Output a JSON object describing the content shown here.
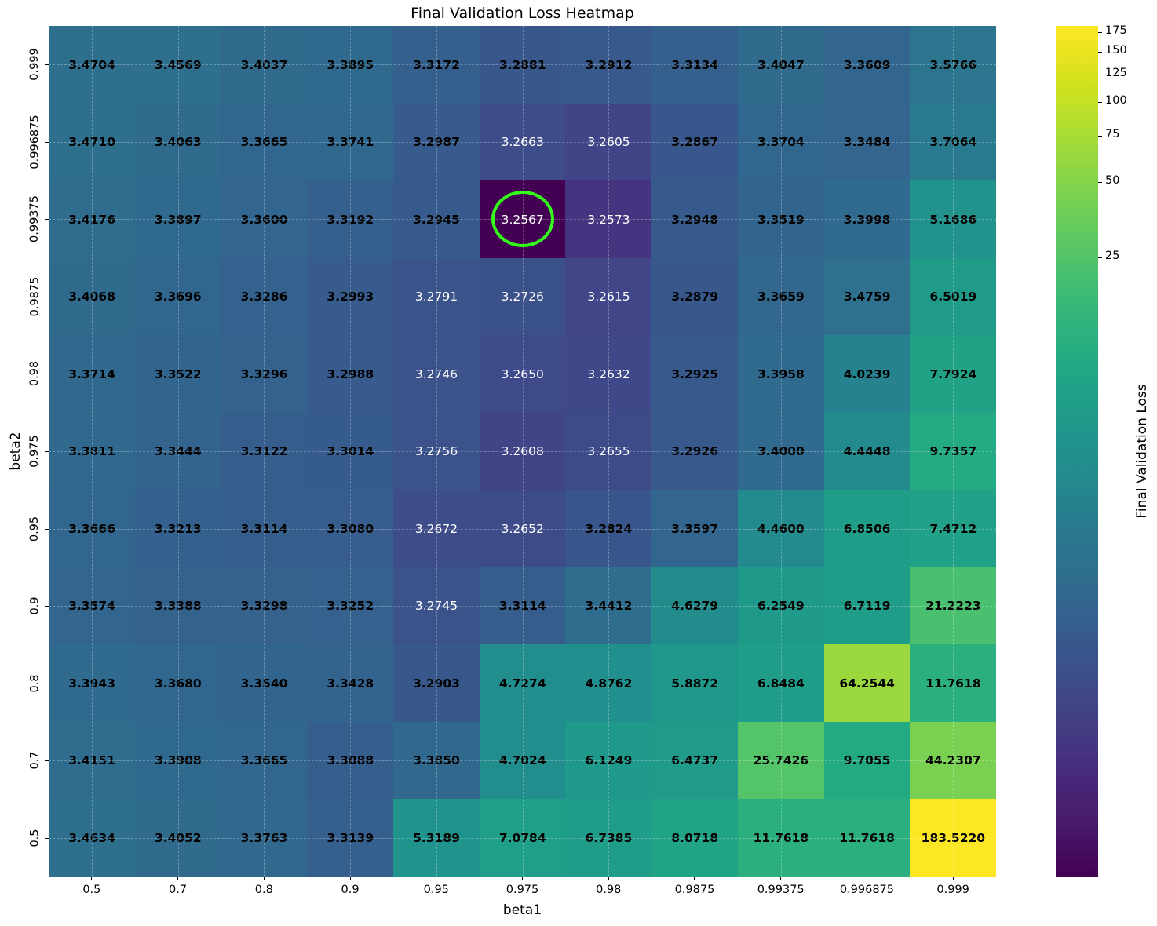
{
  "chart_data": {
    "type": "heatmap",
    "title": "Final Validation Loss Heatmap",
    "xlabel": "beta1",
    "ylabel": "beta2",
    "x": [
      "0.5",
      "0.7",
      "0.8",
      "0.9",
      "0.95",
      "0.975",
      "0.98",
      "0.9875",
      "0.99375",
      "0.996875",
      "0.999"
    ],
    "y": [
      "0.999",
      "0.996875",
      "0.99375",
      "0.9875",
      "0.98",
      "0.975",
      "0.95",
      "0.9",
      "0.8",
      "0.7",
      "0.5"
    ],
    "values": [
      [
        3.4704,
        3.4569,
        3.4037,
        3.3895,
        3.3172,
        3.2881,
        3.2912,
        3.3134,
        3.4047,
        3.3609,
        3.5766
      ],
      [
        3.471,
        3.4063,
        3.3665,
        3.3741,
        3.2987,
        3.2663,
        3.2605,
        3.2867,
        3.3704,
        3.3484,
        3.7064
      ],
      [
        3.4176,
        3.3897,
        3.36,
        3.3192,
        3.2945,
        3.2567,
        3.2573,
        3.2948,
        3.3519,
        3.3998,
        5.1686
      ],
      [
        3.4068,
        3.3696,
        3.3286,
        3.2993,
        3.2791,
        3.2726,
        3.2615,
        3.2879,
        3.3659,
        3.4759,
        6.5019
      ],
      [
        3.3714,
        3.3522,
        3.3296,
        3.2988,
        3.2746,
        3.265,
        3.2632,
        3.2925,
        3.3958,
        4.0239,
        7.7924
      ],
      [
        3.3811,
        3.3444,
        3.3122,
        3.3014,
        3.2756,
        3.2608,
        3.2655,
        3.2926,
        3.4,
        4.4448,
        9.7357
      ],
      [
        3.3666,
        3.3213,
        3.3114,
        3.308,
        3.2672,
        3.2652,
        3.2824,
        3.3597,
        4.46,
        6.8506,
        7.4712
      ],
      [
        3.3574,
        3.3388,
        3.3298,
        3.3252,
        3.2745,
        3.3114,
        3.4412,
        4.6279,
        6.2549,
        6.7119,
        21.2223
      ],
      [
        3.3943,
        3.368,
        3.354,
        3.3428,
        3.2903,
        4.7274,
        4.8762,
        5.8872,
        6.8484,
        64.2544,
        11.7618
      ],
      [
        3.4151,
        3.3908,
        3.3665,
        3.3088,
        3.385,
        4.7024,
        6.1249,
        6.4737,
        25.7426,
        9.7055,
        44.2307
      ],
      [
        3.4634,
        3.4052,
        3.3763,
        3.3139,
        5.3189,
        7.0784,
        6.7385,
        8.0718,
        11.7618,
        11.7618,
        183.522
      ]
    ],
    "labels": [
      [
        "3.4704",
        "3.4569",
        "3.4037",
        "3.3895",
        "3.3172",
        "3.2881",
        "3.2912",
        "3.3134",
        "3.4047",
        "3.3609",
        "3.5766"
      ],
      [
        "3.4710",
        "3.4063",
        "3.3665",
        "3.3741",
        "3.2987",
        "3.2663",
        "3.2605",
        "3.2867",
        "3.3704",
        "3.3484",
        "3.7064"
      ],
      [
        "3.4176",
        "3.3897",
        "3.3600",
        "3.3192",
        "3.2945",
        "3.2567",
        "3.2573",
        "3.2948",
        "3.3519",
        "3.3998",
        "5.1686"
      ],
      [
        "3.4068",
        "3.3696",
        "3.3286",
        "3.2993",
        "3.2791",
        "3.2726",
        "3.2615",
        "3.2879",
        "3.3659",
        "3.4759",
        "6.5019"
      ],
      [
        "3.3714",
        "3.3522",
        "3.3296",
        "3.2988",
        "3.2746",
        "3.2650",
        "3.2632",
        "3.2925",
        "3.3958",
        "4.0239",
        "7.7924"
      ],
      [
        "3.3811",
        "3.3444",
        "3.3122",
        "3.3014",
        "3.2756",
        "3.2608",
        "3.2655",
        "3.2926",
        "3.4000",
        "4.4448",
        "9.7357"
      ],
      [
        "3.3666",
        "3.3213",
        "3.3114",
        "3.3080",
        "3.2672",
        "3.2652",
        "3.2824",
        "3.3597",
        "4.4600",
        "6.8506",
        "7.4712"
      ],
      [
        "3.3574",
        "3.3388",
        "3.3298",
        "3.3252",
        "3.2745",
        "3.3114",
        "3.4412",
        "4.6279",
        "6.2549",
        "6.7119",
        "21.2223"
      ],
      [
        "3.3943",
        "3.3680",
        "3.3540",
        "3.3428",
        "3.2903",
        "4.7274",
        "4.8762",
        "5.8872",
        "6.8484",
        "64.2544",
        "11.7618"
      ],
      [
        "3.4151",
        "3.3908",
        "3.3665",
        "3.3088",
        "3.3850",
        "4.7024",
        "6.1249",
        "6.4737",
        "25.7426",
        "9.7055",
        "44.2307"
      ],
      [
        "3.4634",
        "3.4052",
        "3.3763",
        "3.3139",
        "5.3189",
        "7.0784",
        "6.7385",
        "8.0718",
        "11.7618",
        "11.7618",
        "183.5220"
      ]
    ],
    "colormap": "viridis",
    "norm": {
      "type": "power",
      "gamma": 0.15,
      "vmin": 3.2567,
      "vmax": 183.522
    },
    "colorbar": {
      "label": "Final Validation Loss",
      "ticks": [
        25,
        50,
        75,
        100,
        125,
        150,
        175
      ]
    },
    "highlight": {
      "row": 2,
      "col": 5,
      "value": "3.2567",
      "color": "#33ff1a",
      "shape": "ellipse"
    },
    "light_text_cells": [
      [
        1,
        5
      ],
      [
        1,
        6
      ],
      [
        2,
        5
      ],
      [
        2,
        6
      ],
      [
        3,
        4
      ],
      [
        3,
        5
      ],
      [
        3,
        6
      ],
      [
        4,
        4
      ],
      [
        4,
        5
      ],
      [
        4,
        6
      ],
      [
        5,
        4
      ],
      [
        5,
        5
      ],
      [
        5,
        6
      ],
      [
        6,
        4
      ],
      [
        6,
        5
      ],
      [
        7,
        4
      ]
    ],
    "grid": true
  }
}
